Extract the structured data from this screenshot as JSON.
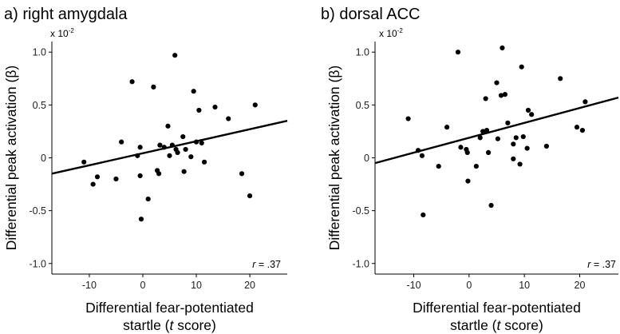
{
  "chart_data": [
    {
      "type": "scatter",
      "title": "a) right amygdala",
      "xlabel_line1": "Differential fear-potentiated",
      "xlabel_line2_pre": "startle (",
      "xlabel_line2_italic": "t",
      "xlabel_line2_post": " score)",
      "ylabel": "Differential peak activation (β)",
      "y_scale_base": "x 10",
      "y_scale_exp": "-2",
      "xlim": [
        -17,
        27
      ],
      "ylim": [
        -1.1,
        1.1
      ],
      "xticks": [
        {
          "v": -10,
          "t": "-10"
        },
        {
          "v": 0,
          "t": "0"
        },
        {
          "v": 10,
          "t": "10"
        },
        {
          "v": 20,
          "t": "20"
        }
      ],
      "yticks": [
        {
          "v": 1.0,
          "t": "1.0"
        },
        {
          "v": 0.5,
          "t": "0.5"
        },
        {
          "v": 0,
          "t": "0"
        },
        {
          "v": -0.5,
          "t": "-0.5"
        },
        {
          "v": -1.0,
          "t": "-1.0"
        }
      ],
      "r_italic": "r",
      "r_value": " = .37",
      "fit_line": {
        "x": [
          -17,
          27
        ],
        "y": [
          -0.15,
          0.35
        ]
      },
      "points": [
        [
          -11,
          -0.04
        ],
        [
          -9.3,
          -0.25
        ],
        [
          -8.5,
          -0.18
        ],
        [
          -5,
          -0.2
        ],
        [
          -4,
          0.15
        ],
        [
          -2,
          0.72
        ],
        [
          -1,
          0.02
        ],
        [
          -0.5,
          0.1
        ],
        [
          -0.5,
          -0.17
        ],
        [
          -0.3,
          -0.58
        ],
        [
          1,
          -0.39
        ],
        [
          2,
          0.67
        ],
        [
          2.7,
          -0.12
        ],
        [
          3,
          -0.15
        ],
        [
          3.2,
          0.12
        ],
        [
          4,
          0.1
        ],
        [
          4.7,
          0.3
        ],
        [
          5,
          0.02
        ],
        [
          5.5,
          0.12
        ],
        [
          6,
          0.97
        ],
        [
          6.2,
          0.08
        ],
        [
          6.5,
          0.05
        ],
        [
          7.5,
          0.2
        ],
        [
          7.7,
          -0.13
        ],
        [
          8,
          0.08
        ],
        [
          9,
          0.01
        ],
        [
          9.5,
          0.63
        ],
        [
          10,
          0.15
        ],
        [
          10.5,
          0.45
        ],
        [
          11,
          0.14
        ],
        [
          11.5,
          -0.04
        ],
        [
          13.5,
          0.48
        ],
        [
          16,
          0.37
        ],
        [
          18.5,
          -0.15
        ],
        [
          20,
          -0.36
        ],
        [
          21,
          0.5
        ]
      ]
    },
    {
      "type": "scatter",
      "title": "b) dorsal ACC",
      "xlabel_line1": "Differential fear-potentiated",
      "xlabel_line2_pre": "startle (",
      "xlabel_line2_italic": "t",
      "xlabel_line2_post": " score)",
      "ylabel": "Differential peak activation (β)",
      "y_scale_base": "x 10",
      "y_scale_exp": "-2",
      "xlim": [
        -17,
        27
      ],
      "ylim": [
        -1.1,
        1.1
      ],
      "xticks": [
        {
          "v": -10,
          "t": "-10"
        },
        {
          "v": 0,
          "t": "0"
        },
        {
          "v": 10,
          "t": "10"
        },
        {
          "v": 20,
          "t": "20"
        }
      ],
      "yticks": [
        {
          "v": 1.0,
          "t": "1.0"
        },
        {
          "v": 0.5,
          "t": "0.5"
        },
        {
          "v": 0,
          "t": "0"
        },
        {
          "v": -0.5,
          "t": "-0.5"
        },
        {
          "v": -1.0,
          "t": "-1.0"
        }
      ],
      "r_italic": "r",
      "r_value": " = .37",
      "fit_line": {
        "x": [
          -17,
          27
        ],
        "y": [
          -0.05,
          0.57
        ]
      },
      "points": [
        [
          -11,
          0.37
        ],
        [
          -9.2,
          0.07
        ],
        [
          -8.5,
          0.02
        ],
        [
          -8.3,
          -0.54
        ],
        [
          -5.5,
          -0.08
        ],
        [
          -4,
          0.29
        ],
        [
          -2,
          1.0
        ],
        [
          -1.5,
          0.1
        ],
        [
          -0.5,
          0.08
        ],
        [
          -0.3,
          0.05
        ],
        [
          -0.2,
          -0.22
        ],
        [
          1.3,
          -0.08
        ],
        [
          2,
          0.19
        ],
        [
          2.5,
          0.25
        ],
        [
          3,
          0.56
        ],
        [
          3.2,
          0.26
        ],
        [
          3.5,
          0.05
        ],
        [
          4,
          -0.45
        ],
        [
          5,
          0.71
        ],
        [
          5.2,
          0.18
        ],
        [
          5.8,
          0.59
        ],
        [
          6,
          1.04
        ],
        [
          6.5,
          0.6
        ],
        [
          7,
          0.33
        ],
        [
          8,
          0.13
        ],
        [
          8,
          -0.01
        ],
        [
          8.5,
          0.19
        ],
        [
          9.2,
          -0.06
        ],
        [
          9.5,
          0.86
        ],
        [
          9.8,
          0.2
        ],
        [
          10.5,
          0.09
        ],
        [
          10.7,
          0.45
        ],
        [
          11.3,
          0.41
        ],
        [
          14,
          0.11
        ],
        [
          16.5,
          0.75
        ],
        [
          19.5,
          0.29
        ],
        [
          20.5,
          0.26
        ],
        [
          21,
          0.53
        ]
      ]
    }
  ]
}
